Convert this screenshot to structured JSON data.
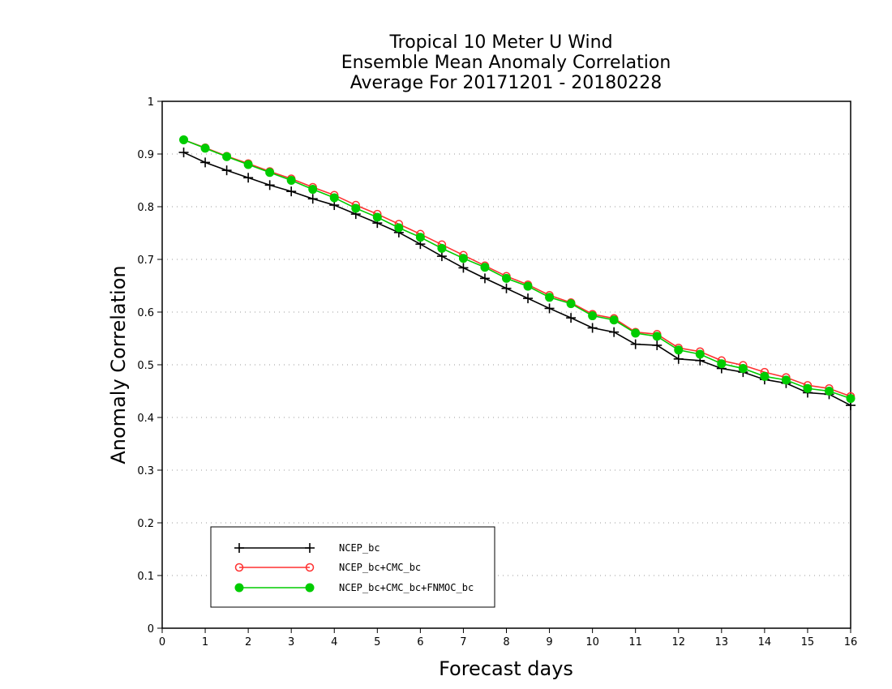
{
  "chart_data": {
    "type": "line",
    "title": [
      "Tropical 10 Meter U Wind",
      "Ensemble Mean Anomaly Correlation",
      "Average For 20171201 - 20180228"
    ],
    "xlabel": "Forecast days",
    "ylabel": "Anomaly Correlation",
    "xlim": [
      0,
      16
    ],
    "ylim": [
      0,
      1
    ],
    "xticks": [
      "0",
      "1",
      "2",
      "3",
      "4",
      "5",
      "6",
      "7",
      "8",
      "9",
      "10",
      "11",
      "12",
      "13",
      "14",
      "15",
      "16"
    ],
    "yticks": [
      "0",
      "0.1",
      "0.2",
      "0.3",
      "0.4",
      "0.5",
      "0.6",
      "0.7",
      "0.8",
      "0.9",
      "1"
    ],
    "grid": "horizontal dotted",
    "legend_position": "bottom-left",
    "x": [
      0.5,
      1,
      1.5,
      2,
      2.5,
      3,
      3.5,
      4,
      4.5,
      5,
      5.5,
      6,
      6.5,
      7,
      7.5,
      8,
      8.5,
      9,
      9.5,
      10,
      10.5,
      11,
      11.5,
      12,
      12.5,
      13,
      13.5,
      14,
      14.5,
      15,
      15.5,
      16
    ],
    "series": [
      {
        "name": "NCEP_bc",
        "color": "#000000",
        "marker": "plus",
        "values": [
          0.903,
          0.884,
          0.869,
          0.855,
          0.841,
          0.829,
          0.815,
          0.803,
          0.786,
          0.769,
          0.751,
          0.729,
          0.706,
          0.684,
          0.664,
          0.645,
          0.626,
          0.607,
          0.589,
          0.57,
          0.562,
          0.539,
          0.537,
          0.511,
          0.508,
          0.493,
          0.486,
          0.472,
          0.465,
          0.447,
          0.444,
          0.423
        ]
      },
      {
        "name": "NCEP_bc+CMC_bc",
        "color": "#ff3030",
        "marker": "open-circle",
        "values": [
          0.927,
          0.912,
          0.896,
          0.882,
          0.867,
          0.853,
          0.837,
          0.822,
          0.803,
          0.786,
          0.767,
          0.748,
          0.728,
          0.708,
          0.688,
          0.668,
          0.652,
          0.632,
          0.618,
          0.596,
          0.588,
          0.562,
          0.558,
          0.532,
          0.525,
          0.508,
          0.499,
          0.486,
          0.476,
          0.461,
          0.455,
          0.44
        ]
      },
      {
        "name": "NCEP_bc+CMC_bc+FNMOC_bc",
        "color": "#00cc00",
        "marker": "filled-circle",
        "values": [
          0.927,
          0.911,
          0.895,
          0.88,
          0.865,
          0.85,
          0.833,
          0.817,
          0.797,
          0.78,
          0.76,
          0.742,
          0.721,
          0.702,
          0.685,
          0.664,
          0.649,
          0.628,
          0.616,
          0.593,
          0.585,
          0.56,
          0.554,
          0.528,
          0.52,
          0.502,
          0.493,
          0.478,
          0.471,
          0.455,
          0.45,
          0.436
        ]
      }
    ]
  }
}
